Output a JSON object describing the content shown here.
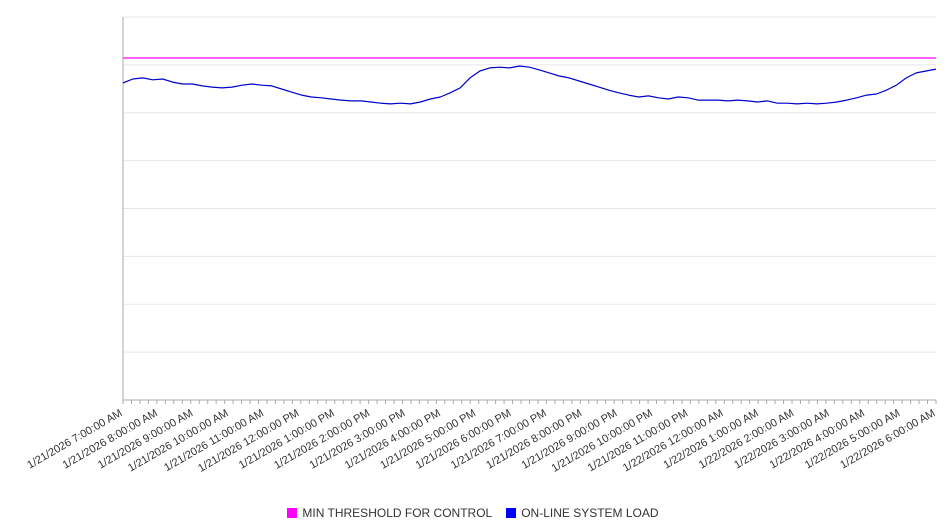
{
  "chart_data": {
    "type": "line",
    "grid": "horizontal",
    "grid_divisions": 8,
    "legend_position": "bottom",
    "ylim": [
      0,
      100
    ],
    "y_tick_labels": [],
    "x_tick_labels": [
      "1/21/2026 7:00:00 AM",
      "1/21/2026 8:00:00 AM",
      "1/21/2026 9:00:00 AM",
      "1/21/2026 10:00:00 AM",
      "1/21/2026 11:00:00 AM",
      "1/21/2026 12:00:00 PM",
      "1/21/2026 1:00:00 PM",
      "1/21/2026 2:00:00 PM",
      "1/21/2026 3:00:00 PM",
      "1/21/2026 4:00:00 PM",
      "1/21/2026 5:00:00 PM",
      "1/21/2026 6:00:00 PM",
      "1/21/2026 7:00:00 PM",
      "1/21/2026 8:00:00 PM",
      "1/21/2026 9:00:00 PM",
      "1/21/2026 10:00:00 PM",
      "1/21/2026 11:00:00 PM",
      "1/22/2026 12:00:00 AM",
      "1/22/2026 1:00:00 AM",
      "1/22/2026 2:00:00 AM",
      "1/22/2026 3:00:00 AM",
      "1/22/2026 4:00:00 AM",
      "1/22/2026 5:00:00 AM",
      "1/22/2026 6:00:00 AM"
    ],
    "series": [
      {
        "name": "MIN THRESHOLD FOR CONTROL",
        "type": "constant-line",
        "color": "#ff00ff",
        "constant_value": 89.3
      },
      {
        "name": "ON-LINE SYSTEM LOAD",
        "type": "line",
        "color": "#0000cc",
        "values": [
          82.8,
          83.8,
          84.1,
          83.6,
          83.8,
          83.0,
          82.5,
          82.5,
          82.0,
          81.7,
          81.5,
          81.7,
          82.2,
          82.5,
          82.2,
          82.0,
          81.2,
          80.4,
          79.6,
          79.1,
          78.9,
          78.6,
          78.3,
          78.1,
          78.1,
          77.8,
          77.5,
          77.3,
          77.5,
          77.3,
          77.8,
          78.6,
          79.1,
          80.2,
          81.5,
          84.1,
          85.9,
          86.7,
          86.9,
          86.7,
          87.2,
          86.9,
          86.2,
          85.4,
          84.6,
          84.1,
          83.3,
          82.5,
          81.7,
          80.9,
          80.2,
          79.6,
          79.1,
          79.4,
          78.9,
          78.6,
          79.1,
          78.9,
          78.3,
          78.3,
          78.3,
          78.1,
          78.3,
          78.1,
          77.8,
          78.1,
          77.5,
          77.5,
          77.3,
          77.5,
          77.3,
          77.5,
          77.8,
          78.3,
          78.9,
          79.6,
          79.9,
          80.9,
          82.2,
          84.1,
          85.4,
          85.9,
          86.4
        ]
      }
    ]
  },
  "legend": {
    "items": [
      {
        "label": "MIN THRESHOLD FOR CONTROL",
        "color": "#ff00ff"
      },
      {
        "label": "ON-LINE SYSTEM LOAD",
        "color": "#0000ff"
      }
    ]
  },
  "colors": {
    "grid": "#e8e8e8",
    "axis": "#aaaaaa",
    "tick_label": "#333333",
    "background": "#ffffff"
  }
}
